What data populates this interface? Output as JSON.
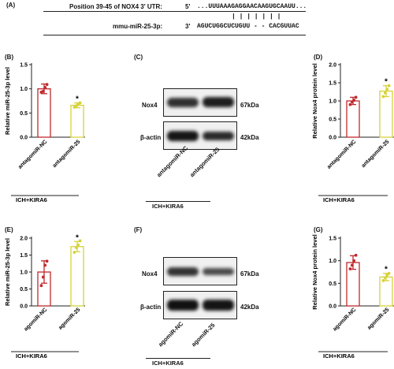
{
  "panelA": {
    "label": "(A)",
    "top_name": "Position 39-45 of NOX4 3' UTR:",
    "top_five": "5'",
    "top_seq": "...UUUAAAGAGGAACAAGUGCAAUU...",
    "bonds": "| | | | | | |",
    "bot_name": "mmu-miR-25-3p:",
    "bot_three": "3'",
    "bot_seq": "AGUCUGGCUCUGUU - - CACGUUAC"
  },
  "panels": {
    "B": {
      "label": "(B)",
      "ylabel": "Relative miR-25-3p level",
      "xticks": [
        "antagomiR-NC",
        "antagomiR-25"
      ],
      "group": "ICH+KIRA6",
      "star": "*",
      "yticks": [
        "0.0",
        "0.5",
        "1.0",
        "1.5"
      ]
    },
    "D": {
      "label": "(D)",
      "ylabel": "Relative Nox4 protein level",
      "xticks": [
        "antagomiR-NC",
        "antagomiR-25"
      ],
      "group": "ICH+KIRA6",
      "star": "*",
      "yticks": [
        "0.0",
        "0.5",
        "1.0",
        "1.5",
        "2.0"
      ]
    },
    "E": {
      "label": "(E)",
      "ylabel": "Relative miR-25-3p level",
      "xticks": [
        "agomiR-NC",
        "agomiR-25"
      ],
      "group": "ICH+KIRA6",
      "star": "*",
      "yticks": [
        "0.0",
        "0.5",
        "1.0",
        "1.5",
        "2.0"
      ]
    },
    "G": {
      "label": "(G)",
      "ylabel": "Relative Nox4 protein level",
      "xticks": [
        "agomiR-NC",
        "agomiR-25"
      ],
      "group": "ICH+KIRA6",
      "star": "*",
      "yticks": [
        "0.0",
        "0.5",
        "1.0",
        "1.5"
      ]
    }
  },
  "blots": {
    "C": {
      "label": "(C)",
      "row1": "Nox4",
      "row1kda": "67kDa",
      "row2": "β-actin",
      "row2kda": "42kDa",
      "lanes": [
        "antagomiR-NC",
        "antagomiR-25"
      ],
      "group": "ICH+KIRA6"
    },
    "F": {
      "label": "(F)",
      "row1": "Nox4",
      "row1kda": "67kDa",
      "row2": "β-actin",
      "row2kda": "42kDa",
      "lanes": [
        "agomiR-NC",
        "agomiR-25"
      ],
      "group": "ICH+KIRA6"
    }
  },
  "colors": {
    "nc": "#c0282d",
    "treat": "#d7d23a",
    "axis": "#222222"
  },
  "chart_data": [
    {
      "id": "B",
      "type": "bar",
      "categories": [
        "antagomiR-NC",
        "antagomiR-25"
      ],
      "values": [
        1.0,
        0.66
      ],
      "errors": [
        0.1,
        0.05
      ],
      "points": [
        [
          0.93,
          0.95,
          1.03,
          1.09
        ],
        [
          0.62,
          0.65,
          0.68,
          0.71
        ]
      ],
      "ylabel": "Relative miR-25-3p level",
      "ylim": [
        0,
        1.5
      ]
    },
    {
      "id": "D",
      "type": "bar",
      "categories": [
        "antagomiR-NC",
        "antagomiR-25"
      ],
      "values": [
        1.0,
        1.27
      ],
      "errors": [
        0.1,
        0.15
      ],
      "points": [
        [
          0.9,
          0.97,
          1.02,
          1.1
        ],
        [
          1.12,
          1.22,
          1.32,
          1.42
        ]
      ],
      "ylabel": "Relative Nox4 protein level",
      "ylim": [
        0,
        2.0
      ]
    },
    {
      "id": "E",
      "type": "bar",
      "categories": [
        "agomiR-NC",
        "agomiR-25"
      ],
      "values": [
        1.0,
        1.75
      ],
      "errors": [
        0.33,
        0.15
      ],
      "points": [
        [
          0.6,
          0.85,
          1.2,
          1.32
        ],
        [
          1.58,
          1.72,
          1.8,
          1.92
        ]
      ],
      "ylabel": "Relative miR-25-3p level",
      "ylim": [
        0,
        2.0
      ]
    },
    {
      "id": "G",
      "type": "bar",
      "categories": [
        "agomiR-NC",
        "agomiR-25"
      ],
      "values": [
        0.96,
        0.64
      ],
      "errors": [
        0.15,
        0.08
      ],
      "points": [
        [
          0.82,
          0.9,
          1.0,
          1.12
        ],
        [
          0.56,
          0.62,
          0.68,
          0.72
        ]
      ],
      "ylabel": "Relative Nox4 protein level",
      "ylim": [
        0,
        1.5
      ]
    }
  ]
}
